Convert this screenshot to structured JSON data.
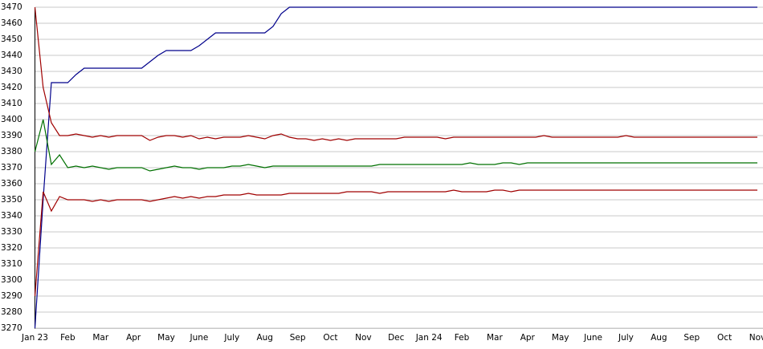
{
  "chart_data": {
    "type": "line",
    "categories": [
      "Jan 23",
      null,
      null,
      null,
      "Feb",
      null,
      null,
      null,
      "Mar",
      null,
      null,
      null,
      "Apr",
      null,
      null,
      null,
      "May",
      null,
      null,
      null,
      "June",
      null,
      null,
      null,
      "July",
      null,
      null,
      null,
      "Aug",
      null,
      null,
      null,
      "Sep",
      null,
      null,
      null,
      "Oct",
      null,
      null,
      null,
      "Nov",
      null,
      null,
      null,
      "Dec",
      null,
      null,
      null,
      "Jan 24",
      null,
      null,
      null,
      "Feb",
      null,
      null,
      null,
      "Mar",
      null,
      null,
      null,
      "Apr",
      null,
      null,
      null,
      "May",
      null,
      null,
      null,
      "June",
      null,
      null,
      null,
      "July",
      null,
      null,
      null,
      "Aug",
      null,
      null,
      null,
      "Sep",
      null,
      null,
      null,
      "Oct",
      null,
      null,
      null,
      "Nov"
    ],
    "series": [
      {
        "color": "#00008b",
        "values": [
          3270,
          3350,
          3423,
          3423,
          3423,
          3428,
          3432,
          3432,
          3432,
          3432,
          3432,
          3432,
          3432,
          3432,
          3436,
          3440,
          3443,
          3443,
          3443,
          3443,
          3446,
          3450,
          3454,
          3454,
          3454,
          3454,
          3454,
          3454,
          3454,
          3458,
          3466,
          3470,
          3470,
          3470,
          3470,
          3470,
          3470,
          3470,
          3470,
          3470,
          3470,
          3470,
          3470,
          3470,
          3470,
          3470,
          3470,
          3470,
          3470,
          3470,
          3470,
          3470,
          3470,
          3470,
          3470,
          3470,
          3470,
          3470,
          3470,
          3470,
          3470,
          3470,
          3470,
          3470,
          3470,
          3470,
          3470,
          3470,
          3470,
          3470,
          3470,
          3470,
          3470,
          3470,
          3470,
          3470,
          3470,
          3470,
          3470,
          3470,
          3470,
          3470,
          3470,
          3470,
          3470,
          3470,
          3470,
          3470,
          3470
        ]
      },
      {
        "color": "#a00000",
        "values": [
          3470,
          3420,
          3398,
          3390,
          3390,
          3391,
          3390,
          3389,
          3390,
          3389,
          3390,
          3390,
          3390,
          3390,
          3387,
          3389,
          3390,
          3390,
          3389,
          3390,
          3388,
          3389,
          3388,
          3389,
          3389,
          3389,
          3390,
          3389,
          3388,
          3390,
          3391,
          3389,
          3388,
          3388,
          3387,
          3388,
          3387,
          3388,
          3387,
          3388,
          3388,
          3388,
          3388,
          3388,
          3388,
          3389,
          3389,
          3389,
          3389,
          3389,
          3388,
          3389,
          3389,
          3389,
          3389,
          3389,
          3389,
          3389,
          3389,
          3389,
          3389,
          3389,
          3390,
          3389,
          3389,
          3389,
          3389,
          3389,
          3389,
          3389,
          3389,
          3389,
          3390,
          3389,
          3389,
          3389,
          3389,
          3389,
          3389,
          3389,
          3389,
          3389,
          3389,
          3389,
          3389,
          3389,
          3389,
          3389,
          3389
        ]
      },
      {
        "color": "#007000",
        "values": [
          3380,
          3400,
          3372,
          3378,
          3370,
          3371,
          3370,
          3371,
          3370,
          3369,
          3370,
          3370,
          3370,
          3370,
          3368,
          3369,
          3370,
          3371,
          3370,
          3370,
          3369,
          3370,
          3370,
          3370,
          3371,
          3371,
          3372,
          3371,
          3370,
          3371,
          3371,
          3371,
          3371,
          3371,
          3371,
          3371,
          3371,
          3371,
          3371,
          3371,
          3371,
          3371,
          3372,
          3372,
          3372,
          3372,
          3372,
          3372,
          3372,
          3372,
          3372,
          3372,
          3372,
          3373,
          3372,
          3372,
          3372,
          3373,
          3373,
          3372,
          3373,
          3373,
          3373,
          3373,
          3373,
          3373,
          3373,
          3373,
          3373,
          3373,
          3373,
          3373,
          3373,
          3373,
          3373,
          3373,
          3373,
          3373,
          3373,
          3373,
          3373,
          3373,
          3373,
          3373,
          3373,
          3373,
          3373,
          3373,
          3373
        ]
      },
      {
        "color": "#a00000",
        "values": [
          3290,
          3355,
          3343,
          3352,
          3350,
          3350,
          3350,
          3349,
          3350,
          3349,
          3350,
          3350,
          3350,
          3350,
          3349,
          3350,
          3351,
          3352,
          3351,
          3352,
          3351,
          3352,
          3352,
          3353,
          3353,
          3353,
          3354,
          3353,
          3353,
          3353,
          3353,
          3354,
          3354,
          3354,
          3354,
          3354,
          3354,
          3354,
          3355,
          3355,
          3355,
          3355,
          3354,
          3355,
          3355,
          3355,
          3355,
          3355,
          3355,
          3355,
          3355,
          3356,
          3355,
          3355,
          3355,
          3355,
          3356,
          3356,
          3355,
          3356,
          3356,
          3356,
          3356,
          3356,
          3356,
          3356,
          3356,
          3356,
          3356,
          3356,
          3356,
          3356,
          3356,
          3356,
          3356,
          3356,
          3356,
          3356,
          3356,
          3356,
          3356,
          3356,
          3356,
          3356,
          3356,
          3356,
          3356,
          3356,
          3356
        ]
      }
    ],
    "ylim": [
      3270,
      3470
    ],
    "yticks": [
      3270,
      3280,
      3290,
      3300,
      3310,
      3320,
      3330,
      3340,
      3350,
      3360,
      3370,
      3380,
      3390,
      3400,
      3410,
      3420,
      3430,
      3440,
      3450,
      3460,
      3470
    ],
    "grid": true
  }
}
